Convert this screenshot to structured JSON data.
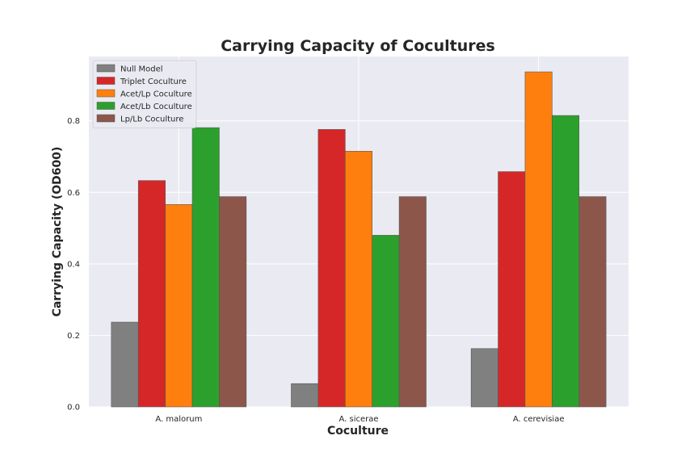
{
  "chart_data": {
    "type": "bar",
    "title": "Carrying Capacity of Cocultures",
    "xlabel": "Coculture",
    "ylabel": "Carrying Capacity (OD600)",
    "categories": [
      "A. malorum",
      "A. sicerae",
      "A. cerevisiae"
    ],
    "ylim": [
      0,
      0.98
    ],
    "yticks": [
      0.0,
      0.2,
      0.4,
      0.6,
      0.8
    ],
    "ytick_labels": [
      "0.0",
      "0.2",
      "0.4",
      "0.6",
      "0.8"
    ],
    "grid": true,
    "legend_position": "top-left",
    "series": [
      {
        "name": "Null Model",
        "color": "#808080",
        "values": [
          0.237,
          0.065,
          0.163
        ]
      },
      {
        "name": "Triplet Coculture",
        "color": "#d62728",
        "values": [
          0.633,
          0.776,
          0.658
        ]
      },
      {
        "name": "Acet/Lp Coculture",
        "color": "#ff7f0e",
        "values": [
          0.566,
          0.715,
          0.937
        ]
      },
      {
        "name": "Acet/Lb Coculture",
        "color": "#2ca02c",
        "values": [
          0.781,
          0.48,
          0.815
        ]
      },
      {
        "name": "Lp/Lb Coculture",
        "color": "#8c564b",
        "values": [
          0.588,
          0.588,
          0.588
        ]
      }
    ]
  }
}
